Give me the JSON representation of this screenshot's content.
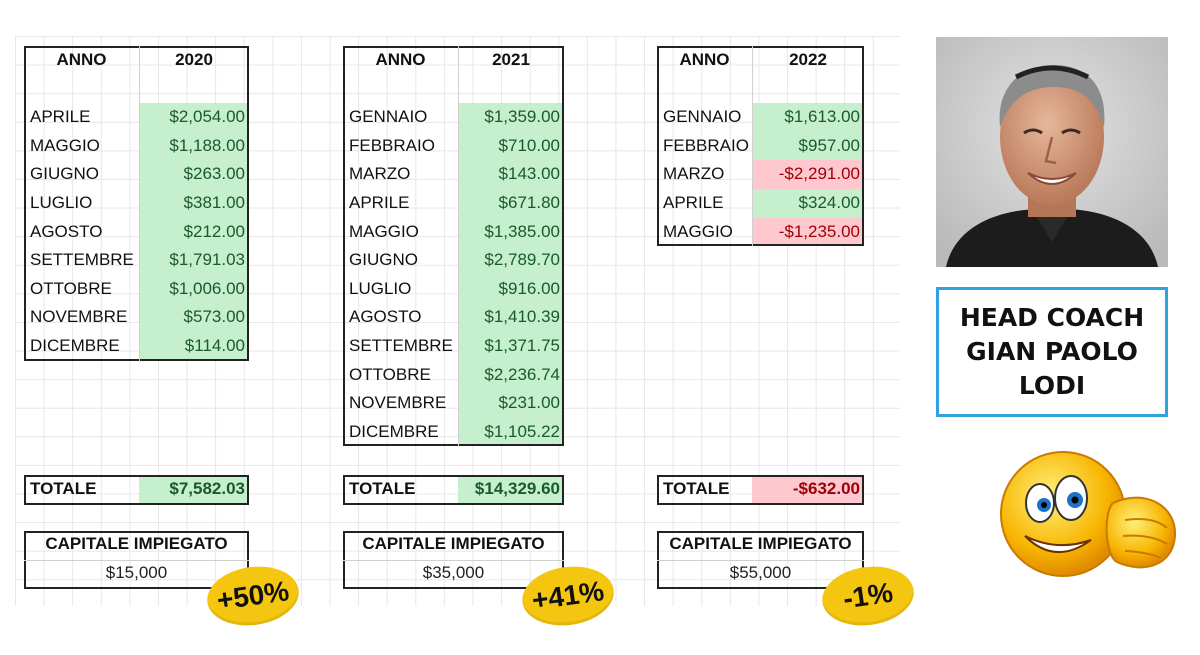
{
  "tables": [
    {
      "year_header": "2020",
      "col_header": "ANNO",
      "months": [
        {
          "label": "APRILE",
          "value": "$2,054.00",
          "status": "pos"
        },
        {
          "label": "MAGGIO",
          "value": "$1,188.00",
          "status": "pos"
        },
        {
          "label": "GIUGNO",
          "value": "$263.00",
          "status": "pos"
        },
        {
          "label": "LUGLIO",
          "value": "$381.00",
          "status": "pos"
        },
        {
          "label": "AGOSTO",
          "value": "$212.00",
          "status": "pos"
        },
        {
          "label": "SETTEMBRE",
          "value": "$1,791.03",
          "status": "pos"
        },
        {
          "label": "OTTOBRE",
          "value": "$1,006.00",
          "status": "pos"
        },
        {
          "label": "NOVEMBRE",
          "value": "$573.00",
          "status": "pos"
        },
        {
          "label": "DICEMBRE",
          "value": "$114.00",
          "status": "pos"
        }
      ],
      "total_label": "TOTALE",
      "total_value": "$7,582.03",
      "total_status": "pos",
      "capital_label": "CAPITALE IMPIEGATO",
      "capital_value": "$15,000",
      "return_badge": "+50%"
    },
    {
      "year_header": "2021",
      "col_header": "ANNO",
      "months": [
        {
          "label": "GENNAIO",
          "value": "$1,359.00",
          "status": "pos"
        },
        {
          "label": "FEBBRAIO",
          "value": "$710.00",
          "status": "pos"
        },
        {
          "label": "MARZO",
          "value": "$143.00",
          "status": "pos"
        },
        {
          "label": "APRILE",
          "value": "$671.80",
          "status": "pos"
        },
        {
          "label": "MAGGIO",
          "value": "$1,385.00",
          "status": "pos"
        },
        {
          "label": "GIUGNO",
          "value": "$2,789.70",
          "status": "pos"
        },
        {
          "label": "LUGLIO",
          "value": "$916.00",
          "status": "pos"
        },
        {
          "label": "AGOSTO",
          "value": "$1,410.39",
          "status": "pos"
        },
        {
          "label": "SETTEMBRE",
          "value": "$1,371.75",
          "status": "pos"
        },
        {
          "label": "OTTOBRE",
          "value": "$2,236.74",
          "status": "pos"
        },
        {
          "label": "NOVEMBRE",
          "value": "$231.00",
          "status": "pos"
        },
        {
          "label": "DICEMBRE",
          "value": "$1,105.22",
          "status": "pos"
        }
      ],
      "total_label": "TOTALE",
      "total_value": "$14,329.60",
      "total_status": "pos",
      "capital_label": "CAPITALE IMPIEGATO",
      "capital_value": "$35,000",
      "return_badge": "+41%"
    },
    {
      "year_header": "2022",
      "col_header": "ANNO",
      "months": [
        {
          "label": "GENNAIO",
          "value": "$1,613.00",
          "status": "pos"
        },
        {
          "label": "FEBBRAIO",
          "value": "$957.00",
          "status": "pos"
        },
        {
          "label": "MARZO",
          "value": "-$2,291.00",
          "status": "neg"
        },
        {
          "label": "APRILE",
          "value": "$324.00",
          "status": "pos"
        },
        {
          "label": "MAGGIO",
          "value": "-$1,235.00",
          "status": "neg"
        }
      ],
      "total_label": "TOTALE",
      "total_value": "-$632.00",
      "total_status": "neg",
      "capital_label": "CAPITALE IMPIEGATO",
      "capital_value": "$55,000",
      "return_badge": "-1%"
    }
  ],
  "coach": {
    "line1": "HEAD COACH",
    "line2": "GIAN PAOLO",
    "line3": "LODI"
  },
  "icons": {
    "photo": "coach-portrait",
    "emoji": "fist-bump-smiley-icon"
  },
  "colors": {
    "positive_fill": "#c6efce",
    "negative_fill": "#ffc7ce",
    "badge": "#f5c60f",
    "coach_border": "#2ea3e0"
  }
}
